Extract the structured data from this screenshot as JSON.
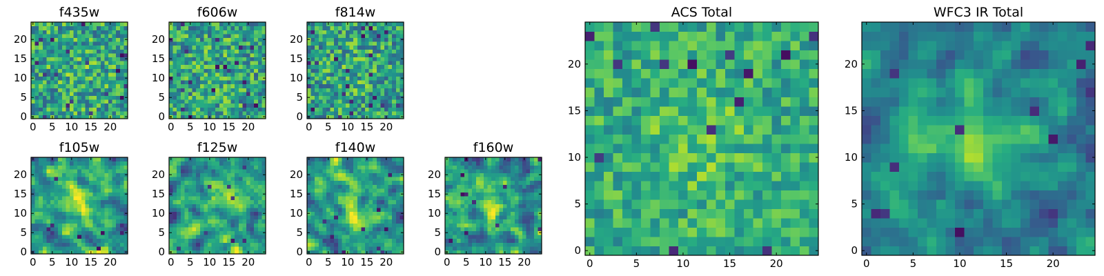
{
  "figure": {
    "background": "#ffffff",
    "colormap": "viridis"
  },
  "chart_data": [
    {
      "type": "heatmap",
      "title": "f435w",
      "grid_size": 25,
      "xlim": [
        0,
        24
      ],
      "ylim": [
        0,
        24
      ],
      "xticks": [
        0,
        5,
        10,
        15,
        20
      ],
      "yticks": [
        0,
        5,
        10,
        15,
        20
      ],
      "seed": 435,
      "smooth": 0,
      "blob_amplitude": 0.05,
      "noise_contrast": 1.0,
      "level": 0.58,
      "dark_pixels": 20
    },
    {
      "type": "heatmap",
      "title": "f606w",
      "grid_size": 25,
      "xlim": [
        0,
        24
      ],
      "ylim": [
        0,
        24
      ],
      "xticks": [
        0,
        5,
        10,
        15,
        20
      ],
      "yticks": [
        0,
        5,
        10,
        15,
        20
      ],
      "seed": 606,
      "smooth": 0,
      "blob_amplitude": 0.05,
      "noise_contrast": 1.0,
      "level": 0.58,
      "dark_pixels": 20
    },
    {
      "type": "heatmap",
      "title": "f814w",
      "grid_size": 25,
      "xlim": [
        0,
        24
      ],
      "ylim": [
        0,
        24
      ],
      "xticks": [
        0,
        5,
        10,
        15,
        20
      ],
      "yticks": [
        0,
        5,
        10,
        15,
        20
      ],
      "seed": 814,
      "smooth": 0,
      "blob_amplitude": 0.08,
      "noise_contrast": 1.0,
      "level": 0.56,
      "dark_pixels": 24
    },
    {
      "type": "heatmap",
      "title": "f105w",
      "grid_size": 25,
      "xlim": [
        0,
        24
      ],
      "ylim": [
        0,
        24
      ],
      "xticks": [
        0,
        5,
        10,
        15,
        20
      ],
      "yticks": [
        0,
        5,
        10,
        15,
        20
      ],
      "seed": 105,
      "smooth": 1,
      "blob_amplitude": 0.22,
      "noise_contrast": 0.9,
      "level": 0.55,
      "dark_pixels": 8
    },
    {
      "type": "heatmap",
      "title": "f125w",
      "grid_size": 25,
      "xlim": [
        0,
        24
      ],
      "ylim": [
        0,
        24
      ],
      "xticks": [
        0,
        5,
        10,
        15,
        20
      ],
      "yticks": [
        0,
        5,
        10,
        15,
        20
      ],
      "seed": 125,
      "smooth": 1,
      "blob_amplitude": 0.18,
      "noise_contrast": 0.9,
      "level": 0.55,
      "dark_pixels": 8
    },
    {
      "type": "heatmap",
      "title": "f140w",
      "grid_size": 25,
      "xlim": [
        0,
        24
      ],
      "ylim": [
        0,
        24
      ],
      "xticks": [
        0,
        5,
        10,
        15,
        20
      ],
      "yticks": [
        0,
        5,
        10,
        15,
        20
      ],
      "seed": 140,
      "smooth": 1,
      "blob_amplitude": 0.3,
      "noise_contrast": 0.9,
      "level": 0.52,
      "dark_pixels": 10
    },
    {
      "type": "heatmap",
      "title": "f160w",
      "grid_size": 25,
      "xlim": [
        0,
        24
      ],
      "ylim": [
        0,
        24
      ],
      "xticks": [
        0,
        5,
        10,
        15,
        20
      ],
      "yticks": [
        0,
        5,
        10,
        15,
        20
      ],
      "seed": 160,
      "smooth": 1,
      "blob_amplitude": 0.32,
      "noise_contrast": 0.9,
      "level": 0.5,
      "dark_pixels": 12
    },
    {
      "type": "heatmap",
      "title": "ACS Total",
      "grid_size": 25,
      "xlim": [
        0,
        24
      ],
      "ylim": [
        0,
        24
      ],
      "xticks": [
        0,
        5,
        10,
        15,
        20
      ],
      "yticks": [
        0,
        5,
        10,
        15,
        20
      ],
      "seed": 900,
      "smooth": 0,
      "blob_amplitude": 0.12,
      "noise_contrast": 0.7,
      "level": 0.62,
      "dark_pixels": 14
    },
    {
      "type": "heatmap",
      "title": "WFC3 IR Total",
      "grid_size": 25,
      "xlim": [
        0,
        24
      ],
      "ylim": [
        0,
        24
      ],
      "xticks": [
        0,
        5,
        10,
        15,
        20
      ],
      "yticks": [
        0,
        5,
        10,
        15,
        20
      ],
      "seed": 901,
      "smooth": 1,
      "blob_amplitude": 0.4,
      "noise_contrast": 0.6,
      "level": 0.42,
      "dark_pixels": 10
    }
  ]
}
